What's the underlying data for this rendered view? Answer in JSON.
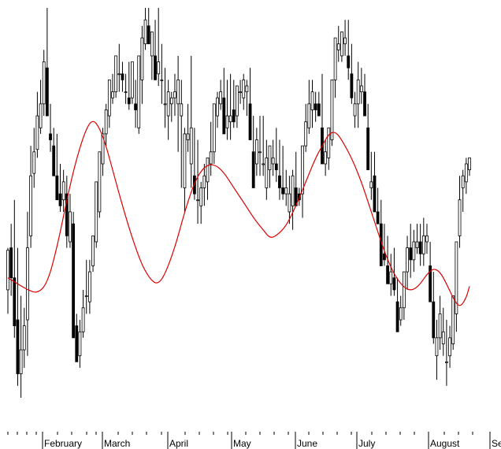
{
  "chart_data": {
    "type": "candlestick",
    "title": "",
    "xlabel": "",
    "ylabel": "",
    "x_axis": {
      "month_labels": [
        "February",
        "March",
        "April",
        "May",
        "June",
        "July",
        "August",
        "Se"
      ]
    },
    "y_axis": {
      "visible": false
    },
    "grid": false,
    "legend": "none",
    "series": [
      {
        "kind": "candles"
      },
      {
        "kind": "line",
        "color": "#dd0000"
      }
    ],
    "candles": [
      [
        0,
        245,
        300,
        265,
        298
      ],
      [
        1,
        260,
        320,
        300,
        275
      ],
      [
        2,
        225,
        340,
        275,
        235
      ],
      [
        3,
        185,
        300,
        240,
        195
      ],
      [
        4,
        175,
        260,
        195,
        215
      ],
      [
        5,
        200,
        250,
        215,
        235
      ],
      [
        6,
        210,
        330,
        240,
        300
      ],
      [
        7,
        300,
        385,
        310,
        360
      ],
      [
        8,
        350,
        400,
        362,
        380
      ],
      [
        9,
        375,
        430,
        382,
        410
      ],
      [
        10,
        395,
        440,
        400,
        420
      ],
      [
        11,
        410,
        465,
        420,
        455
      ],
      [
        12,
        440,
        500,
        450,
        410
      ],
      [
        13,
        380,
        420,
        395,
        390
      ],
      [
        14,
        370,
        400,
        385,
        360
      ],
      [
        15,
        350,
        395,
        360,
        340
      ],
      [
        16,
        330,
        370,
        345,
        335
      ],
      [
        17,
        330,
        365,
        340,
        355
      ],
      [
        18,
        300,
        360,
        345,
        310
      ],
      [
        19,
        300,
        345,
        305,
        330
      ],
      [
        20,
        310,
        330,
        320,
        225
      ],
      [
        21,
        230,
        245,
        235,
        205
      ],
      [
        22,
        200,
        240,
        210,
        230
      ],
      [
        23,
        225,
        265,
        230,
        250
      ],
      [
        24,
        245,
        290,
        260,
        260
      ],
      [
        25,
        245,
        290,
        255,
        280
      ],
      [
        26,
        280,
        300,
        285,
        310
      ],
      [
        27,
        300,
        315,
        305,
        355
      ],
      [
        28,
        325,
        350,
        330,
        380
      ],
      [
        29,
        360,
        400,
        370,
        395
      ],
      [
        30,
        385,
        420,
        395,
        415
      ],
      [
        31,
        400,
        440,
        410,
        440
      ],
      [
        32,
        420,
        445,
        425,
        430
      ],
      [
        33,
        425,
        455,
        430,
        460
      ],
      [
        34,
        430,
        470,
        445,
        445
      ],
      [
        35,
        430,
        455,
        445,
        440
      ],
      [
        36,
        420,
        445,
        430,
        430
      ],
      [
        37,
        415,
        455,
        425,
        420
      ],
      [
        38,
        420,
        450,
        425,
        455
      ],
      [
        39,
        400,
        440,
        420,
        415
      ],
      [
        40,
        395,
        430,
        400,
        460
      ],
      [
        41,
        420,
        485,
        440,
        475
      ],
      [
        42,
        465,
        500,
        470,
        490
      ],
      [
        43,
        470,
        500,
        485,
        470
      ],
      [
        44,
        440,
        475,
        460,
        480
      ],
      [
        45,
        440,
        490,
        460,
        440
      ],
      [
        46,
        435,
        500,
        445,
        455
      ],
      [
        47,
        420,
        470,
        440,
        440
      ],
      [
        48,
        400,
        450,
        420,
        420
      ],
      [
        49,
        390,
        440,
        410,
        430
      ],
      [
        50,
        405,
        430,
        420,
        425
      ],
      [
        51,
        410,
        445,
        425,
        430
      ],
      [
        52,
        380,
        460,
        420,
        440
      ],
      [
        53,
        350,
        440,
        410,
        420
      ],
      [
        54,
        330,
        400,
        350,
        395
      ],
      [
        55,
        380,
        420,
        390,
        395
      ],
      [
        56,
        350,
        460,
        370,
        400
      ],
      [
        57,
        340,
        400,
        360,
        345
      ],
      [
        58,
        320,
        390,
        340,
        340
      ],
      [
        59,
        320,
        355,
        335,
        350
      ],
      [
        60,
        335,
        370,
        350,
        360
      ],
      [
        61,
        340,
        370,
        355,
        375
      ],
      [
        62,
        360,
        405,
        370,
        380
      ],
      [
        63,
        370,
        410,
        380,
        420
      ],
      [
        64,
        400,
        430,
        410,
        425
      ],
      [
        65,
        415,
        440,
        420,
        430
      ],
      [
        66,
        415,
        450,
        425,
        395
      ],
      [
        67,
        390,
        440,
        400,
        410
      ],
      [
        68,
        390,
        445,
        405,
        410
      ],
      [
        69,
        400,
        440,
        415,
        405
      ],
      [
        70,
        400,
        420,
        410,
        435
      ],
      [
        71,
        420,
        440,
        430,
        430
      ],
      [
        72,
        415,
        445,
        425,
        440
      ],
      [
        73,
        410,
        440,
        430,
        435
      ],
      [
        74,
        415,
        450,
        420,
        390
      ],
      [
        75,
        360,
        410,
        380,
        350
      ],
      [
        76,
        360,
        400,
        370,
        390
      ],
      [
        77,
        360,
        410,
        380,
        380
      ],
      [
        78,
        360,
        410,
        370,
        370
      ],
      [
        79,
        340,
        390,
        350,
        375
      ],
      [
        80,
        350,
        385,
        365,
        385
      ],
      [
        81,
        360,
        390,
        370,
        375
      ],
      [
        82,
        355,
        400,
        370,
        365
      ],
      [
        83,
        340,
        390,
        360,
        350
      ],
      [
        84,
        340,
        385,
        350,
        345
      ],
      [
        85,
        335,
        365,
        345,
        350
      ],
      [
        86,
        320,
        360,
        330,
        345
      ],
      [
        87,
        315,
        365,
        335,
        360
      ],
      [
        88,
        340,
        380,
        350,
        335
      ],
      [
        89,
        335,
        350,
        345,
        340
      ],
      [
        90,
        325,
        370,
        345,
        385
      ],
      [
        91,
        380,
        420,
        385,
        405
      ],
      [
        92,
        395,
        440,
        400,
        420
      ],
      [
        93,
        400,
        440,
        415,
        430
      ],
      [
        94,
        405,
        430,
        420,
        415
      ],
      [
        95,
        410,
        430,
        420,
        410
      ],
      [
        96,
        385,
        445,
        400,
        370
      ],
      [
        97,
        360,
        390,
        370,
        380
      ],
      [
        98,
        365,
        400,
        375,
        400
      ],
      [
        99,
        385,
        430,
        390,
        440
      ],
      [
        100,
        425,
        475,
        440,
        475
      ],
      [
        101,
        455,
        485,
        465,
        470
      ],
      [
        102,
        455,
        470,
        460,
        480
      ],
      [
        103,
        460,
        490,
        470,
        475
      ],
      [
        104,
        440,
        490,
        460,
        450
      ],
      [
        105,
        420,
        470,
        445,
        425
      ],
      [
        106,
        400,
        430,
        410,
        420
      ],
      [
        107,
        400,
        455,
        420,
        440
      ],
      [
        108,
        420,
        450,
        430,
        435
      ],
      [
        109,
        420,
        445,
        430,
        410
      ],
      [
        110,
        380,
        420,
        400,
        365
      ],
      [
        111,
        340,
        380,
        350,
        355
      ],
      [
        112,
        340,
        380,
        360,
        330
      ],
      [
        113,
        320,
        350,
        330,
        320
      ],
      [
        114,
        310,
        340,
        320,
        285
      ],
      [
        115,
        285,
        320,
        295,
        290
      ],
      [
        116,
        280,
        310,
        285,
        270
      ],
      [
        117,
        260,
        295,
        270,
        280
      ],
      [
        118,
        260,
        300,
        275,
        265
      ],
      [
        119,
        245,
        275,
        255,
        230
      ],
      [
        120,
        235,
        260,
        240,
        250
      ],
      [
        121,
        240,
        275,
        250,
        280
      ],
      [
        122,
        265,
        310,
        280,
        300
      ],
      [
        123,
        275,
        320,
        300,
        290
      ],
      [
        124,
        280,
        315,
        290,
        305
      ],
      [
        125,
        295,
        320,
        300,
        305
      ],
      [
        126,
        285,
        320,
        305,
        295
      ],
      [
        127,
        285,
        325,
        295,
        310
      ],
      [
        128,
        295,
        320,
        305,
        310
      ],
      [
        129,
        260,
        305,
        285,
        255
      ],
      [
        130,
        220,
        280,
        255,
        225
      ],
      [
        131,
        190,
        240,
        210,
        225
      ],
      [
        132,
        215,
        260,
        225,
        245
      ],
      [
        133,
        210,
        250,
        220,
        230
      ],
      [
        134,
        185,
        240,
        205,
        205
      ],
      [
        135,
        200,
        235,
        210,
        225
      ],
      [
        136,
        215,
        240,
        220,
        260
      ],
      [
        137,
        230,
        260,
        245,
        305
      ],
      [
        138,
        300,
        360,
        310,
        340
      ],
      [
        139,
        330,
        365,
        350,
        360
      ],
      [
        140,
        345,
        375,
        355,
        370
      ],
      [
        141,
        360,
        375,
        365,
        375
      ]
    ],
    "moving_average": [
      [
        0,
        275
      ],
      [
        3,
        270
      ],
      [
        6,
        265
      ],
      [
        9,
        262
      ],
      [
        12,
        270
      ],
      [
        15,
        300
      ],
      [
        18,
        340
      ],
      [
        21,
        375
      ],
      [
        24,
        400
      ],
      [
        26,
        407
      ],
      [
        28,
        400
      ],
      [
        30,
        385
      ],
      [
        32,
        365
      ],
      [
        35,
        335
      ],
      [
        38,
        308
      ],
      [
        41,
        285
      ],
      [
        44,
        272
      ],
      [
        46,
        270
      ],
      [
        48,
        278
      ],
      [
        51,
        300
      ],
      [
        54,
        330
      ],
      [
        57,
        355
      ],
      [
        60,
        368
      ],
      [
        63,
        370
      ],
      [
        66,
        363
      ],
      [
        69,
        350
      ],
      [
        72,
        338
      ],
      [
        75,
        325
      ],
      [
        78,
        315
      ],
      [
        80,
        308
      ],
      [
        82,
        310
      ],
      [
        85,
        318
      ],
      [
        88,
        335
      ],
      [
        91,
        355
      ],
      [
        94,
        375
      ],
      [
        96,
        385
      ],
      [
        98,
        395
      ],
      [
        100,
        397
      ],
      [
        102,
        390
      ],
      [
        105,
        375
      ],
      [
        108,
        355
      ],
      [
        111,
        330
      ],
      [
        114,
        305
      ],
      [
        116,
        290
      ],
      [
        118,
        278
      ],
      [
        120,
        270
      ],
      [
        122,
        265
      ],
      [
        124,
        265
      ],
      [
        126,
        270
      ],
      [
        128,
        278
      ],
      [
        130,
        283
      ],
      [
        132,
        280
      ],
      [
        134,
        270
      ],
      [
        136,
        258
      ],
      [
        138,
        250
      ],
      [
        140,
        258
      ],
      [
        141,
        268
      ]
    ]
  }
}
